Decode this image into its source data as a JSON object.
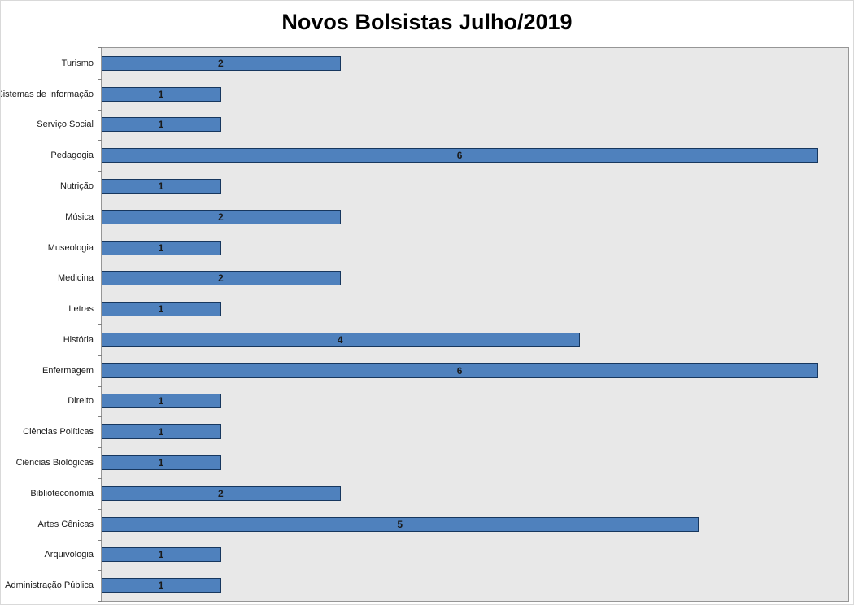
{
  "chart_data": {
    "type": "bar",
    "orientation": "horizontal",
    "title": "Novos Bolsistas Julho/2019",
    "categories": [
      "Turismo",
      "Sistemas de Informação",
      "Serviço Social",
      "Pedagogia",
      "Nutrição",
      "Música",
      "Museologia",
      "Medicina",
      "Letras",
      "História",
      "Enfermagem",
      "Direito",
      "Ciências Políticas",
      "Ciências Biológicas",
      "Biblioteconomia",
      "Artes Cênicas",
      "Arquivologia",
      "Administração Pública"
    ],
    "values": [
      2,
      1,
      1,
      6,
      1,
      2,
      1,
      2,
      1,
      4,
      6,
      1,
      1,
      1,
      2,
      5,
      1,
      1
    ],
    "xlabel": "",
    "ylabel": "",
    "xlim": [
      0,
      6.25
    ],
    "grid": false,
    "legend": false,
    "data_labels": "center-inside-bar",
    "colors": {
      "bar_fill": "#4f81bd",
      "bar_border": "#17375e",
      "plot_background": "#e8e8e8",
      "plot_border": "#969696",
      "label_text": "#1a1a1a",
      "title_text": "#000000"
    }
  }
}
